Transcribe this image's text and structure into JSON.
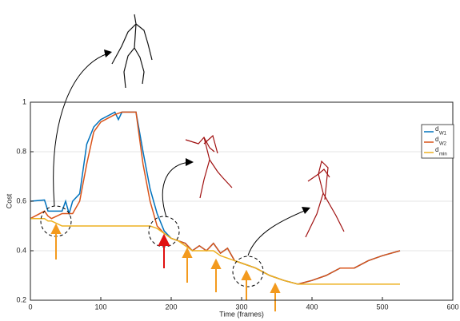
{
  "chart_data": {
    "type": "line",
    "x_label": "Time (frames)",
    "y_label": "Cost",
    "x": [
      0,
      20,
      25,
      30,
      45,
      50,
      55,
      60,
      70,
      80,
      90,
      100,
      120,
      125,
      130,
      150,
      160,
      170,
      180,
      190,
      200,
      210,
      220,
      230,
      240,
      250,
      260,
      270,
      280,
      290,
      300,
      320,
      340,
      360,
      380,
      400,
      420,
      440,
      460,
      480,
      500,
      525
    ],
    "series": [
      {
        "name": "d",
        "subscript": "W1",
        "color": "#0072bd",
        "values": [
          0.6,
          0.605,
          0.56,
          0.56,
          0.56,
          0.6,
          0.55,
          0.6,
          0.63,
          0.83,
          0.9,
          0.93,
          0.96,
          0.93,
          0.96,
          0.96,
          0.8,
          0.65,
          0.55,
          0.48,
          0.45,
          0.44,
          0.43,
          0.4,
          0.42,
          0.4,
          0.43,
          0.39,
          0.41,
          0.36,
          0.35,
          0.33,
          0.3,
          0.28,
          0.265,
          0.28,
          0.3,
          0.33,
          0.33,
          0.36,
          0.38,
          0.4
        ]
      },
      {
        "name": "d",
        "subscript": "W2",
        "color": "#d95319",
        "values": [
          0.53,
          0.56,
          0.54,
          0.53,
          0.55,
          0.55,
          0.55,
          0.55,
          0.6,
          0.75,
          0.88,
          0.92,
          0.95,
          0.955,
          0.96,
          0.96,
          0.75,
          0.6,
          0.5,
          0.47,
          0.45,
          0.44,
          0.43,
          0.4,
          0.42,
          0.4,
          0.43,
          0.39,
          0.41,
          0.36,
          0.35,
          0.33,
          0.3,
          0.28,
          0.265,
          0.28,
          0.3,
          0.33,
          0.33,
          0.36,
          0.38,
          0.4
        ]
      },
      {
        "name": "d",
        "subscript": "min",
        "color": "#edb120",
        "values": [
          0.53,
          0.53,
          0.52,
          0.52,
          0.5,
          0.5,
          0.5,
          0.5,
          0.5,
          0.5,
          0.5,
          0.5,
          0.5,
          0.5,
          0.5,
          0.5,
          0.5,
          0.5,
          0.49,
          0.47,
          0.45,
          0.44,
          0.42,
          0.4,
          0.4,
          0.4,
          0.4,
          0.38,
          0.37,
          0.36,
          0.35,
          0.33,
          0.3,
          0.28,
          0.265,
          0.265,
          0.265,
          0.265,
          0.265,
          0.265,
          0.265,
          0.265
        ]
      }
    ],
    "xlim": [
      0,
      600
    ],
    "xticks": [
      0,
      100,
      200,
      300,
      400,
      500,
      600
    ],
    "ylim": [
      0.2,
      1
    ],
    "yticks": [
      0.2,
      0.4,
      0.6,
      0.8,
      1
    ],
    "grid": true,
    "legend": "top-right"
  }
}
